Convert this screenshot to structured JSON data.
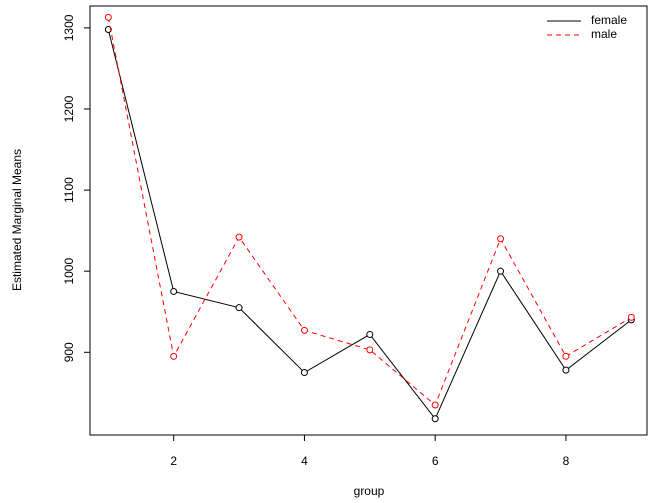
{
  "chart_data": {
    "type": "line",
    "xlabel": "group",
    "ylabel": "Estimated Marginal Means",
    "x": [
      1,
      2,
      3,
      4,
      5,
      6,
      7,
      8,
      9
    ],
    "series": [
      {
        "name": "female",
        "color": "#000000",
        "dash": false,
        "values": [
          1298,
          975,
          955,
          875,
          922,
          818,
          1000,
          878,
          940
        ]
      },
      {
        "name": "male",
        "color": "#ff0000",
        "dash": true,
        "values": [
          1313,
          895,
          1042,
          927,
          903,
          835,
          1040,
          895,
          943
        ]
      }
    ],
    "xlim": [
      0.72,
      9.24
    ],
    "xticks": [
      2,
      4,
      6,
      8
    ],
    "ylim": [
      798,
      1327
    ],
    "yticks": [
      900,
      1000,
      1100,
      1200,
      1300
    ],
    "legend": "top-right",
    "grid": false
  }
}
